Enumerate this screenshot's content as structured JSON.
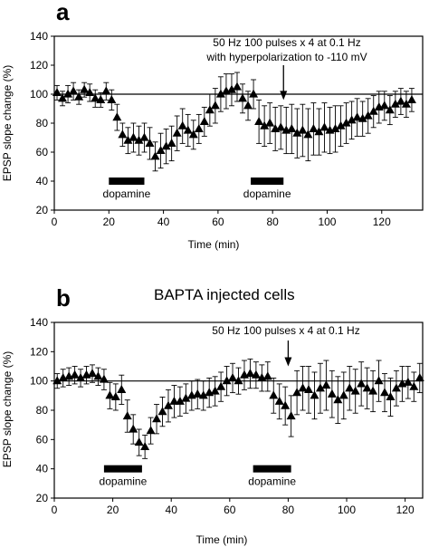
{
  "chart_data": [
    {
      "type": "scatter",
      "panel_label": "a",
      "title": "",
      "xlabel": "Time (min)",
      "ylabel": "EPSP slope change (%)",
      "xlim": [
        0,
        135
      ],
      "ylim": [
        20,
        140
      ],
      "xticks": [
        "0",
        "20",
        "40",
        "60",
        "80",
        "100",
        "120"
      ],
      "yticks": [
        "20",
        "40",
        "60",
        "80",
        "100",
        "120",
        "140"
      ],
      "baseline": 100,
      "grid": false,
      "marker": "triangle",
      "annotation": {
        "lines": [
          "50 Hz 100 pulses x 4 at 0.1 Hz",
          "with hyperpolarization to -110 mV"
        ],
        "arrow_x": 84,
        "arrow_tip_y": 96
      },
      "bars": [
        {
          "label": "dopamine",
          "x_start": 20,
          "x_end": 33
        },
        {
          "label": "dopamine",
          "x_start": 72,
          "x_end": 84
        }
      ],
      "series": [
        {
          "x": [
            1,
            3,
            5,
            7,
            9,
            11,
            13,
            15,
            17,
            19,
            21,
            23,
            25,
            27,
            29,
            31,
            33,
            35,
            37,
            39,
            41,
            43,
            45,
            47,
            49,
            51,
            53,
            55,
            57,
            59,
            61,
            63,
            65,
            67,
            69,
            71,
            73,
            75,
            77,
            79,
            81,
            83,
            85,
            87,
            89,
            91,
            93,
            95,
            97,
            99,
            101,
            103,
            105,
            107,
            109,
            111,
            113,
            115,
            117,
            119,
            121,
            123,
            125,
            127,
            129,
            131
          ],
          "y": [
            101,
            97,
            100,
            102,
            98,
            103,
            101,
            97,
            96,
            102,
            96,
            84,
            72,
            68,
            70,
            68,
            70,
            66,
            57,
            61,
            64,
            66,
            73,
            78,
            75,
            72,
            76,
            81,
            89,
            92,
            100,
            102,
            103,
            105,
            97,
            92,
            100,
            81,
            78,
            80,
            76,
            77,
            75,
            76,
            73,
            75,
            72,
            76,
            74,
            77,
            75,
            76,
            78,
            80,
            82,
            84,
            83,
            85,
            88,
            91,
            92,
            89,
            93,
            95,
            93,
            96
          ],
          "err": [
            5,
            5,
            6,
            6,
            5,
            5,
            6,
            6,
            5,
            6,
            7,
            9,
            8,
            9,
            10,
            10,
            10,
            11,
            10,
            12,
            12,
            12,
            12,
            12,
            11,
            10,
            10,
            10,
            11,
            12,
            12,
            12,
            11,
            10,
            10,
            10,
            10,
            15,
            14,
            14,
            15,
            15,
            16,
            17,
            17,
            18,
            18,
            18,
            16,
            17,
            16,
            16,
            14,
            14,
            13,
            13,
            12,
            12,
            11,
            11,
            10,
            10,
            9,
            9,
            9,
            8
          ]
        }
      ]
    },
    {
      "type": "scatter",
      "panel_label": "b",
      "title": "BAPTA injected cells",
      "xlabel": "Time (min)",
      "ylabel": "EPSP slope change (%)",
      "xlim": [
        0,
        126
      ],
      "ylim": [
        20,
        140
      ],
      "xticks": [
        "0",
        "20",
        "40",
        "60",
        "80",
        "100",
        "120"
      ],
      "yticks": [
        "20",
        "40",
        "60",
        "80",
        "100",
        "120",
        "140"
      ],
      "baseline": 100,
      "grid": false,
      "marker": "triangle",
      "annotation": {
        "lines": [
          "50 Hz 100 pulses x 4 at 0.1 Hz"
        ],
        "arrow_x": 80,
        "arrow_tip_y": 110
      },
      "bars": [
        {
          "label": "dopamine",
          "x_start": 17,
          "x_end": 30
        },
        {
          "label": "dopamine",
          "x_start": 68,
          "x_end": 81
        }
      ],
      "series": [
        {
          "x": [
            1,
            3,
            5,
            7,
            9,
            11,
            13,
            15,
            17,
            19,
            21,
            23,
            25,
            27,
            29,
            31,
            33,
            35,
            37,
            39,
            41,
            43,
            45,
            47,
            49,
            51,
            53,
            55,
            57,
            59,
            61,
            63,
            65,
            67,
            69,
            71,
            73,
            75,
            77,
            79,
            81,
            83,
            85,
            87,
            89,
            91,
            93,
            95,
            97,
            99,
            101,
            103,
            105,
            107,
            109,
            111,
            113,
            115,
            117,
            119,
            121,
            123,
            125
          ],
          "y": [
            100,
            102,
            103,
            104,
            102,
            104,
            105,
            103,
            101,
            90,
            89,
            94,
            76,
            67,
            58,
            55,
            66,
            74,
            79,
            83,
            86,
            86,
            88,
            90,
            91,
            90,
            92,
            93,
            96,
            100,
            102,
            100,
            104,
            105,
            104,
            102,
            103,
            90,
            86,
            83,
            76,
            92,
            95,
            94,
            90,
            95,
            97,
            91,
            87,
            90,
            95,
            93,
            98,
            95,
            93,
            100,
            92,
            89,
            95,
            98,
            99,
            96,
            102
          ],
          "err": [
            5,
            6,
            6,
            6,
            6,
            6,
            6,
            6,
            7,
            9,
            9,
            10,
            11,
            10,
            9,
            8,
            9,
            10,
            10,
            11,
            11,
            10,
            10,
            10,
            10,
            10,
            10,
            10,
            10,
            10,
            10,
            9,
            10,
            10,
            9,
            9,
            10,
            12,
            12,
            13,
            14,
            15,
            15,
            16,
            16,
            17,
            17,
            16,
            16,
            16,
            15,
            15,
            15,
            14,
            14,
            14,
            13,
            13,
            12,
            12,
            11,
            10,
            10
          ]
        }
      ]
    }
  ]
}
